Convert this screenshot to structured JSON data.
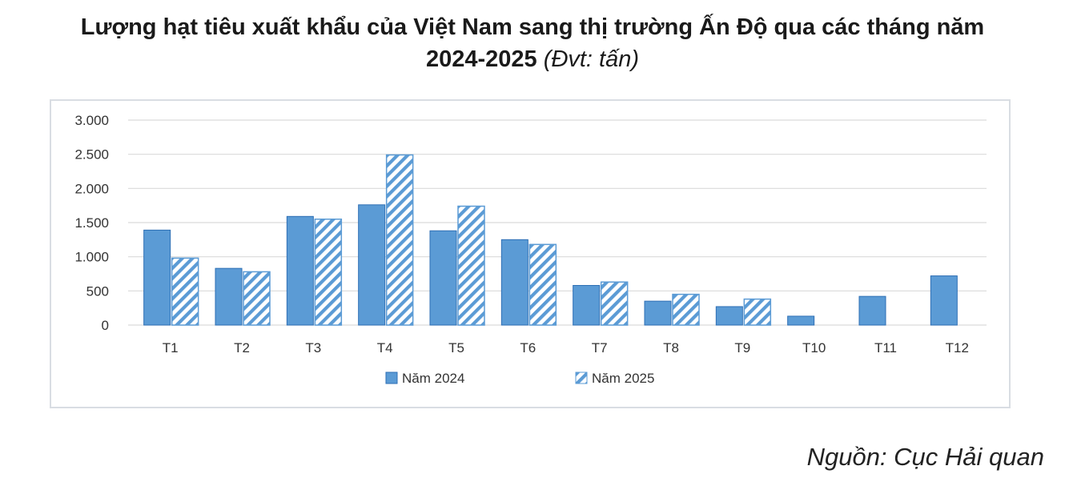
{
  "title": {
    "line1": "Lượng hạt tiêu xuất khẩu của Việt Nam sang thị trường Ấn Độ qua các tháng năm",
    "line2_bold": "2024-2025",
    "line2_unit": "(Đvt: tấn)"
  },
  "source": "Nguồn: Cục Hải quan",
  "colors": {
    "series_2024": "#5b9bd5",
    "series_2024_edge": "#2e6fb5",
    "series_2025_stripe": "#5b9bd5",
    "grid": "#d9d9d9"
  },
  "chart_data": {
    "type": "bar",
    "categories": [
      "T1",
      "T2",
      "T3",
      "T4",
      "T5",
      "T6",
      "T7",
      "T8",
      "T9",
      "T10",
      "T11",
      "T12"
    ],
    "series": [
      {
        "name": "Năm 2024",
        "values": [
          1390,
          830,
          1590,
          1760,
          1380,
          1250,
          580,
          350,
          270,
          130,
          420,
          720
        ],
        "pattern": "solid"
      },
      {
        "name": "Năm 2025",
        "values": [
          980,
          780,
          1550,
          2490,
          1740,
          1180,
          630,
          450,
          380,
          null,
          null,
          null
        ],
        "pattern": "diagonal-stripes"
      }
    ],
    "ylim": [
      0,
      3000
    ],
    "yticks": [
      0,
      500,
      1000,
      1500,
      2000,
      2500,
      3000
    ],
    "ytick_labels": [
      "0",
      "500",
      "1.000",
      "1.500",
      "2.000",
      "2.500",
      "3.000"
    ],
    "grid": true,
    "legend_position": "bottom"
  }
}
